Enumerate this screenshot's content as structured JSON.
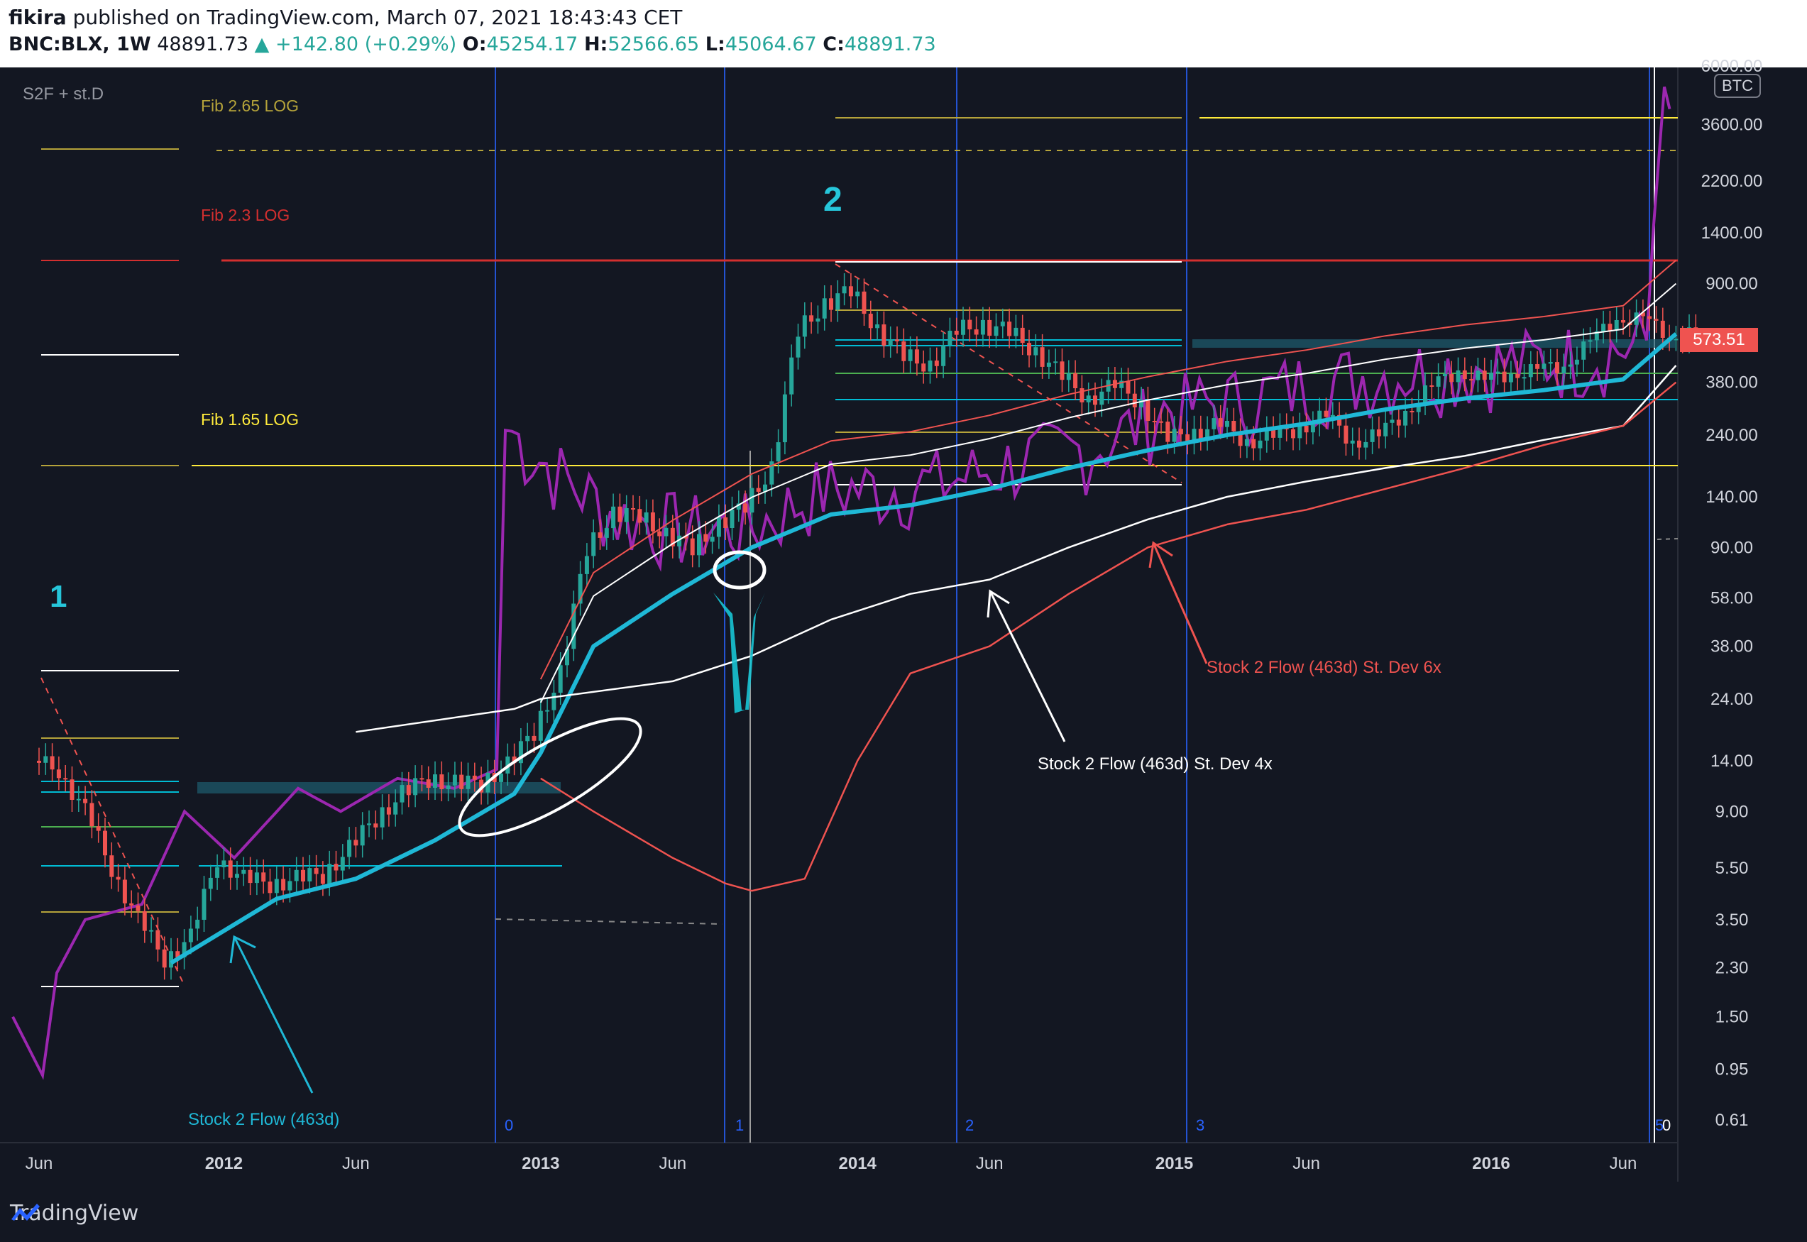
{
  "header": {
    "author": "fikira",
    "published": "published on TradingView.com, March 07, 2021 18:43:43 CET",
    "symbol": "BNC:BLX, 1W",
    "last": "48891.73",
    "change": "+142.80 (+0.29%)",
    "o_label": "O:",
    "o_value": "45254.17",
    "h_label": "H:",
    "h_value": "52566.65",
    "l_label": "L:",
    "l_value": "45064.67",
    "c_label": "C:",
    "c_value": "48891.73"
  },
  "indicator_label": "S2F + st.D",
  "currency_badge": "BTC",
  "price_label": "573.51",
  "footer_brand": "TradingView",
  "colors": {
    "background": "#131722",
    "price_up": "#26a69a",
    "price_down": "#ef5350",
    "s2f": "#1fb8d6",
    "stdev4": "#ffffff",
    "stdev6": "#ef5350",
    "purple": "#9c27b0",
    "fib_red": "#d32f2f",
    "fib_yellow": "#e0d060",
    "vline": "#2962ff"
  },
  "chart_data": {
    "type": "line",
    "scale": "log",
    "ylim": [
      0.61,
      6000
    ],
    "y_ticks": [
      "6000.00",
      "3600.00",
      "2200.00",
      "1400.00",
      "900.00",
      "573.51",
      "380.00",
      "240.00",
      "140.00",
      "90.00",
      "58.00",
      "38.00",
      "24.00",
      "14.00",
      "9.00",
      "5.50",
      "3.50",
      "2.30",
      "1.50",
      "0.95",
      "0.61"
    ],
    "x_ticks": [
      "Jun",
      "2012",
      "Jun",
      "2013",
      "Jun",
      "2014",
      "Jun",
      "2015",
      "Jun",
      "2016",
      "Jun"
    ],
    "fib_labels": [
      "Fib 2.65 LOG",
      "Fib 2.3 LOG",
      "Fib 1.65 LOG"
    ],
    "cycle_labels": [
      "0",
      "1",
      "2",
      "3",
      "5",
      "0"
    ],
    "annotations": [
      "1",
      "2",
      "Stock 2 Flow (463d)",
      "Stock 2 Flow (463d) St. Dev 4x",
      "Stock 2 Flow (463d) St. Dev 6x"
    ],
    "series": [
      {
        "name": "Stock 2 Flow (463d)",
        "x": [
          "2011-11",
          "2012-03",
          "2012-06",
          "2012-09",
          "2012-12",
          "2013-01",
          "2013-03",
          "2013-06",
          "2013-09",
          "2013-12",
          "2014-03",
          "2014-06",
          "2014-09",
          "2014-12",
          "2015-03",
          "2015-06",
          "2015-09",
          "2015-12",
          "2016-03",
          "2016-06",
          "2016-08"
        ],
        "values": [
          2.4,
          4.2,
          5.0,
          7.0,
          10.5,
          15,
          38,
          60,
          90,
          120,
          130,
          150,
          180,
          210,
          240,
          265,
          300,
          330,
          355,
          390,
          580
        ]
      },
      {
        "name": "Stock 2 Flow (463d) St. Dev 4x",
        "x": [
          "2012-06",
          "2012-12",
          "2013-01",
          "2013-06",
          "2013-09",
          "2013-12",
          "2014-03",
          "2014-06",
          "2014-09",
          "2014-12",
          "2015-03",
          "2015-06",
          "2015-09",
          "2015-12",
          "2016-03",
          "2016-06",
          "2016-08"
        ],
        "values": [
          18,
          22,
          24,
          28,
          35,
          48,
          60,
          68,
          90,
          115,
          140,
          160,
          180,
          200,
          230,
          260,
          440
        ]
      },
      {
        "name": "Stock 2 Flow (463d) St. Dev 6x",
        "x": [
          "2013-01",
          "2013-03",
          "2013-06",
          "2013-08",
          "2013-09",
          "2013-11",
          "2014-01",
          "2014-03",
          "2014-06",
          "2014-09",
          "2014-12",
          "2015-03",
          "2015-06",
          "2015-09",
          "2015-12",
          "2016-03",
          "2016-06",
          "2016-08"
        ],
        "values": [
          12,
          9,
          6,
          4.8,
          4.5,
          5,
          14,
          30,
          38,
          60,
          90,
          110,
          125,
          150,
          180,
          220,
          260,
          380
        ]
      }
    ]
  }
}
